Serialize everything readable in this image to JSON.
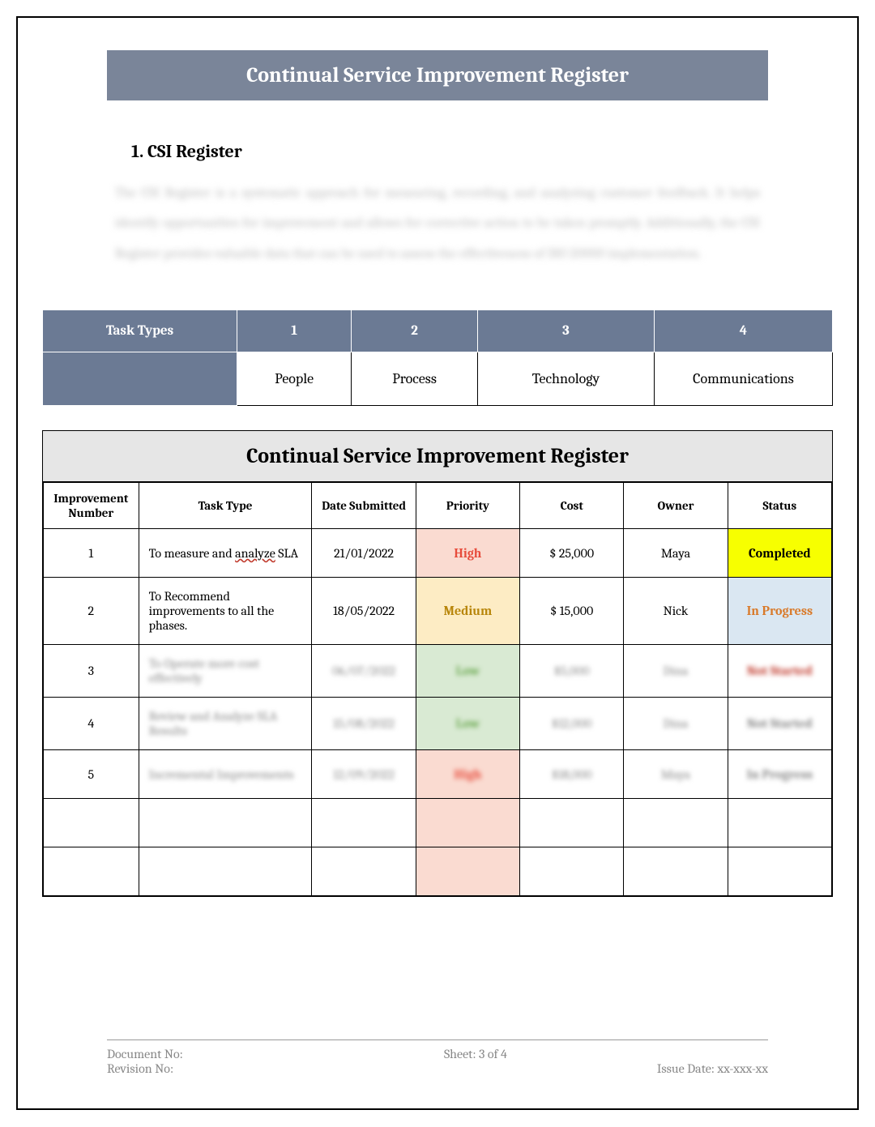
{
  "title_banner": "Continual Service Improvement Register",
  "section_heading": "1.   CSI Register",
  "blurred_paragraph": "The CSI Register is a systematic approach for measuring, recording, and analyzing customer feedback. It helps identify opportunities for improvement and allows for corrective action to be taken promptly. Additionally, the CSI Register provides valuable data that can be used to assess the effectiveness of ISO 20000 implementation.",
  "task_types": {
    "header_label": "Task Types",
    "columns": [
      "1",
      "2",
      "3",
      "4"
    ],
    "values": [
      "People",
      "Process",
      "Technology",
      "Communications"
    ]
  },
  "register": {
    "title": "Continual Service Improvement Register",
    "columns": [
      "Improvement Number",
      "Task Type",
      "Date Submitted",
      "Priority",
      "Cost",
      "Owner",
      "Status"
    ],
    "column_widths": [
      "110px",
      "200px",
      "120px",
      "120px",
      "120px",
      "120px",
      "120px"
    ],
    "rows": [
      {
        "num": "1",
        "task": "To measure and analyze SLA",
        "task_underline_word": "analyze",
        "date": "21/01/2022",
        "priority": {
          "label": "High",
          "color": "#e74c3c",
          "bg": "#fadbd1"
        },
        "cost": "$ 25,000",
        "owner": "Maya",
        "status": {
          "label": "Completed",
          "color": "#000000",
          "bg": "#f7ff00"
        }
      },
      {
        "num": "2",
        "task": "To Recommend improvements to all the phases.",
        "date": "18/05/2022",
        "priority": {
          "label": "Medium",
          "color": "#b8860b",
          "bg": "#fdecc4"
        },
        "cost": "$ 15,000",
        "owner": "Nick",
        "status": {
          "label": "In Progress",
          "color": "#d97a2a",
          "bg": "#dae7f2"
        }
      },
      {
        "num": "3",
        "task": "To Operate more cost effectively",
        "date": "06/07/2022",
        "priority": {
          "label": "Low",
          "color": "#6aa84f",
          "bg": "#d9ead3"
        },
        "cost": "$5,000",
        "owner": "Dina",
        "status": {
          "label": "Not Started",
          "color": "#c0392b",
          "bg": "#ffffff"
        },
        "blurred": true
      },
      {
        "num": "4",
        "task": "Review and Analyze SLA Results",
        "date": "15/08/2022",
        "priority": {
          "label": "Low",
          "color": "#6aa84f",
          "bg": "#d9ead3"
        },
        "cost": "$12,000",
        "owner": "Dina",
        "status": {
          "label": "Not Started",
          "color": "#888888",
          "bg": "#ffffff"
        },
        "blurred": true
      },
      {
        "num": "5",
        "task": "Incremental Improvements",
        "date": "12/09/2022",
        "priority": {
          "label": "High",
          "color": "#e74c3c",
          "bg": "#fadbd1"
        },
        "cost": "$18,000",
        "owner": "Maya",
        "status": {
          "label": "In Progress",
          "color": "#888888",
          "bg": "#ffffff"
        },
        "blurred": true
      }
    ],
    "empty_rows": 2,
    "empty_priority_bg": "#fadbd1"
  },
  "footer": {
    "doc_no_label": "Document No:",
    "rev_no_label": "Revision No:",
    "sheet_label": "Sheet: 3 of 4",
    "issue_date_label": "Issue Date: xx-xxx-xx"
  },
  "colors": {
    "banner_bg": "#7a8599",
    "task_header_bg": "#6b7a94",
    "register_title_bg": "#e6e6e6",
    "border": "#000000",
    "footer_text": "#888888"
  }
}
